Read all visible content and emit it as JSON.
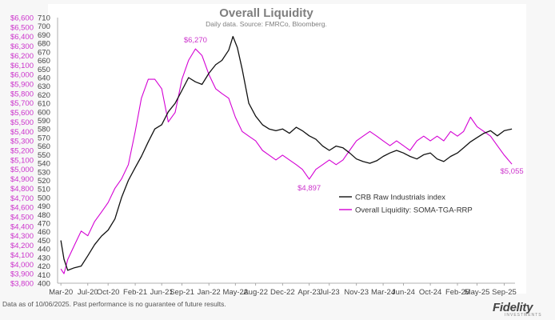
{
  "chart_data": {
    "type": "line",
    "title": "Overall Liquidity",
    "subtitle": "Daily data.  Source: FMRCo, Bloomberg.",
    "x_tick_labels": [
      "Mar-20",
      "Jul-20",
      "Oct-20",
      "Feb-21",
      "Jun-21",
      "Sep-21",
      "Jan-22",
      "May-22",
      "Aug-22",
      "Dec-22",
      "Apr-23",
      "Jul-23",
      "Nov-23",
      "Mar-24",
      "Jun-24",
      "Oct-24",
      "Feb-25",
      "May-25",
      "Sep-25"
    ],
    "x_tick_dates": [
      "2020-03-01",
      "2020-07-01",
      "2020-10-01",
      "2021-02-01",
      "2021-06-01",
      "2021-09-01",
      "2022-01-01",
      "2022-05-01",
      "2022-08-01",
      "2022-12-01",
      "2023-04-01",
      "2023-07-01",
      "2023-11-01",
      "2024-03-01",
      "2024-06-01",
      "2024-10-01",
      "2025-02-01",
      "2025-05-01",
      "2025-09-01"
    ],
    "x_range": [
      "2020-02-15",
      "2025-10-20"
    ],
    "y_left_ticks": [
      "$3,800",
      "$3,900",
      "$4,000",
      "$4,100",
      "$4,200",
      "$4,300",
      "$4,400",
      "$4,500",
      "$4,600",
      "$4,700",
      "$4,800",
      "$4,900",
      "$5,000",
      "$5,100",
      "$5,200",
      "$5,300",
      "$5,400",
      "$5,500",
      "$5,600",
      "$5,700",
      "$5,800",
      "$5,900",
      "$6,000",
      "$6,100",
      "$6,200",
      "$6,300",
      "$6,400",
      "$6,500",
      "$6,600"
    ],
    "y_left_range": [
      3800,
      6600
    ],
    "y_right_ticks": [
      "400",
      "410",
      "420",
      "430",
      "440",
      "450",
      "460",
      "470",
      "480",
      "490",
      "500",
      "510",
      "520",
      "530",
      "540",
      "550",
      "560",
      "570",
      "580",
      "590",
      "600",
      "610",
      "620",
      "630",
      "640",
      "650",
      "660",
      "670",
      "680",
      "690",
      "700",
      "710"
    ],
    "y_right_range": [
      400,
      710
    ],
    "grid": false,
    "legend_position": "lower-right",
    "series": [
      {
        "name": "CRB Raw Industrials index",
        "axis": "right",
        "color": "#111111",
        "points": [
          [
            "2020-03-01",
            450
          ],
          [
            "2020-03-15",
            428
          ],
          [
            "2020-04-01",
            415
          ],
          [
            "2020-05-01",
            418
          ],
          [
            "2020-06-01",
            420
          ],
          [
            "2020-07-01",
            432
          ],
          [
            "2020-08-01",
            445
          ],
          [
            "2020-09-01",
            455
          ],
          [
            "2020-10-01",
            462
          ],
          [
            "2020-11-01",
            475
          ],
          [
            "2020-12-01",
            500
          ],
          [
            "2021-01-01",
            520
          ],
          [
            "2021-02-01",
            535
          ],
          [
            "2021-03-01",
            548
          ],
          [
            "2021-04-01",
            565
          ],
          [
            "2021-05-01",
            580
          ],
          [
            "2021-06-01",
            585
          ],
          [
            "2021-07-01",
            600
          ],
          [
            "2021-08-01",
            610
          ],
          [
            "2021-09-01",
            625
          ],
          [
            "2021-10-01",
            640
          ],
          [
            "2021-11-01",
            635
          ],
          [
            "2021-12-01",
            632
          ],
          [
            "2022-01-01",
            645
          ],
          [
            "2022-02-01",
            655
          ],
          [
            "2022-03-01",
            660
          ],
          [
            "2022-04-01",
            672
          ],
          [
            "2022-04-20",
            688
          ],
          [
            "2022-05-10",
            675
          ],
          [
            "2022-06-01",
            650
          ],
          [
            "2022-07-01",
            610
          ],
          [
            "2022-08-01",
            595
          ],
          [
            "2022-09-01",
            585
          ],
          [
            "2022-10-01",
            580
          ],
          [
            "2022-11-01",
            578
          ],
          [
            "2022-12-01",
            580
          ],
          [
            "2023-01-01",
            575
          ],
          [
            "2023-02-01",
            582
          ],
          [
            "2023-03-01",
            578
          ],
          [
            "2023-04-01",
            572
          ],
          [
            "2023-05-01",
            568
          ],
          [
            "2023-06-01",
            560
          ],
          [
            "2023-07-01",
            555
          ],
          [
            "2023-08-01",
            560
          ],
          [
            "2023-09-01",
            558
          ],
          [
            "2023-10-01",
            552
          ],
          [
            "2023-11-01",
            545
          ],
          [
            "2023-12-01",
            542
          ],
          [
            "2024-01-01",
            540
          ],
          [
            "2024-02-01",
            543
          ],
          [
            "2024-03-01",
            548
          ],
          [
            "2024-04-01",
            552
          ],
          [
            "2024-05-01",
            555
          ],
          [
            "2024-06-01",
            552
          ],
          [
            "2024-07-01",
            548
          ],
          [
            "2024-08-01",
            545
          ],
          [
            "2024-09-01",
            550
          ],
          [
            "2024-10-01",
            552
          ],
          [
            "2024-11-01",
            545
          ],
          [
            "2024-12-01",
            542
          ],
          [
            "2025-01-01",
            548
          ],
          [
            "2025-02-01",
            552
          ],
          [
            "2025-03-01",
            558
          ],
          [
            "2025-04-01",
            565
          ],
          [
            "2025-05-01",
            570
          ],
          [
            "2025-06-01",
            575
          ],
          [
            "2025-07-01",
            578
          ],
          [
            "2025-08-01",
            572
          ],
          [
            "2025-09-01",
            578
          ],
          [
            "2025-10-06",
            580
          ]
        ]
      },
      {
        "name": "Overall Liquidity: SOMA-TGA-RRP",
        "axis": "left",
        "color": "#d400d4",
        "points": [
          [
            "2020-03-01",
            3950
          ],
          [
            "2020-03-15",
            3900
          ],
          [
            "2020-04-01",
            4050
          ],
          [
            "2020-05-01",
            4200
          ],
          [
            "2020-06-01",
            4350
          ],
          [
            "2020-07-01",
            4300
          ],
          [
            "2020-08-01",
            4450
          ],
          [
            "2020-09-01",
            4550
          ],
          [
            "2020-10-01",
            4650
          ],
          [
            "2020-11-01",
            4800
          ],
          [
            "2020-12-01",
            4900
          ],
          [
            "2021-01-01",
            5050
          ],
          [
            "2021-02-01",
            5400
          ],
          [
            "2021-03-01",
            5750
          ],
          [
            "2021-04-01",
            5950
          ],
          [
            "2021-05-01",
            5950
          ],
          [
            "2021-06-01",
            5850
          ],
          [
            "2021-07-01",
            5500
          ],
          [
            "2021-08-01",
            5600
          ],
          [
            "2021-09-01",
            5950
          ],
          [
            "2021-10-01",
            6150
          ],
          [
            "2021-11-01",
            6270
          ],
          [
            "2021-12-01",
            6200
          ],
          [
            "2022-01-01",
            6000
          ],
          [
            "2022-02-01",
            5850
          ],
          [
            "2022-03-01",
            5800
          ],
          [
            "2022-04-01",
            5750
          ],
          [
            "2022-05-01",
            5550
          ],
          [
            "2022-06-01",
            5400
          ],
          [
            "2022-07-01",
            5350
          ],
          [
            "2022-08-01",
            5300
          ],
          [
            "2022-09-01",
            5200
          ],
          [
            "2022-10-01",
            5150
          ],
          [
            "2022-11-01",
            5100
          ],
          [
            "2022-12-01",
            5150
          ],
          [
            "2023-01-01",
            5100
          ],
          [
            "2023-02-01",
            5050
          ],
          [
            "2023-03-01",
            5000
          ],
          [
            "2023-04-01",
            4897
          ],
          [
            "2023-05-01",
            5000
          ],
          [
            "2023-06-01",
            5050
          ],
          [
            "2023-07-01",
            5100
          ],
          [
            "2023-08-01",
            5050
          ],
          [
            "2023-09-01",
            5100
          ],
          [
            "2023-10-01",
            5200
          ],
          [
            "2023-11-01",
            5300
          ],
          [
            "2023-12-01",
            5350
          ],
          [
            "2024-01-01",
            5400
          ],
          [
            "2024-02-01",
            5350
          ],
          [
            "2024-03-01",
            5300
          ],
          [
            "2024-04-01",
            5250
          ],
          [
            "2024-05-01",
            5300
          ],
          [
            "2024-06-01",
            5250
          ],
          [
            "2024-07-01",
            5200
          ],
          [
            "2024-08-01",
            5300
          ],
          [
            "2024-09-01",
            5350
          ],
          [
            "2024-10-01",
            5300
          ],
          [
            "2024-11-01",
            5350
          ],
          [
            "2024-12-01",
            5300
          ],
          [
            "2025-01-01",
            5400
          ],
          [
            "2025-02-01",
            5350
          ],
          [
            "2025-03-01",
            5400
          ],
          [
            "2025-04-01",
            5550
          ],
          [
            "2025-05-01",
            5450
          ],
          [
            "2025-06-01",
            5400
          ],
          [
            "2025-07-01",
            5350
          ],
          [
            "2025-08-01",
            5250
          ],
          [
            "2025-09-01",
            5150
          ],
          [
            "2025-10-06",
            5055
          ]
        ]
      }
    ],
    "annotations": [
      {
        "text": "$6,270",
        "date": "2021-11-01",
        "value": 6270,
        "axis": "left",
        "anchor": "middle",
        "dx": 0,
        "dy": -8
      },
      {
        "text": "$4,897",
        "date": "2023-04-01",
        "value": 4897,
        "axis": "left",
        "anchor": "middle",
        "dx": 0,
        "dy": 14
      },
      {
        "text": "$5,055",
        "date": "2025-10-06",
        "value": 5055,
        "axis": "left",
        "anchor": "middle",
        "dx": 0,
        "dy": 12
      }
    ]
  },
  "footnote": "Data as of 10/06/2025. Past performance is no guarantee of future results.",
  "logo": {
    "name": "Fidelity",
    "tagline": "INVESTMENTS"
  }
}
